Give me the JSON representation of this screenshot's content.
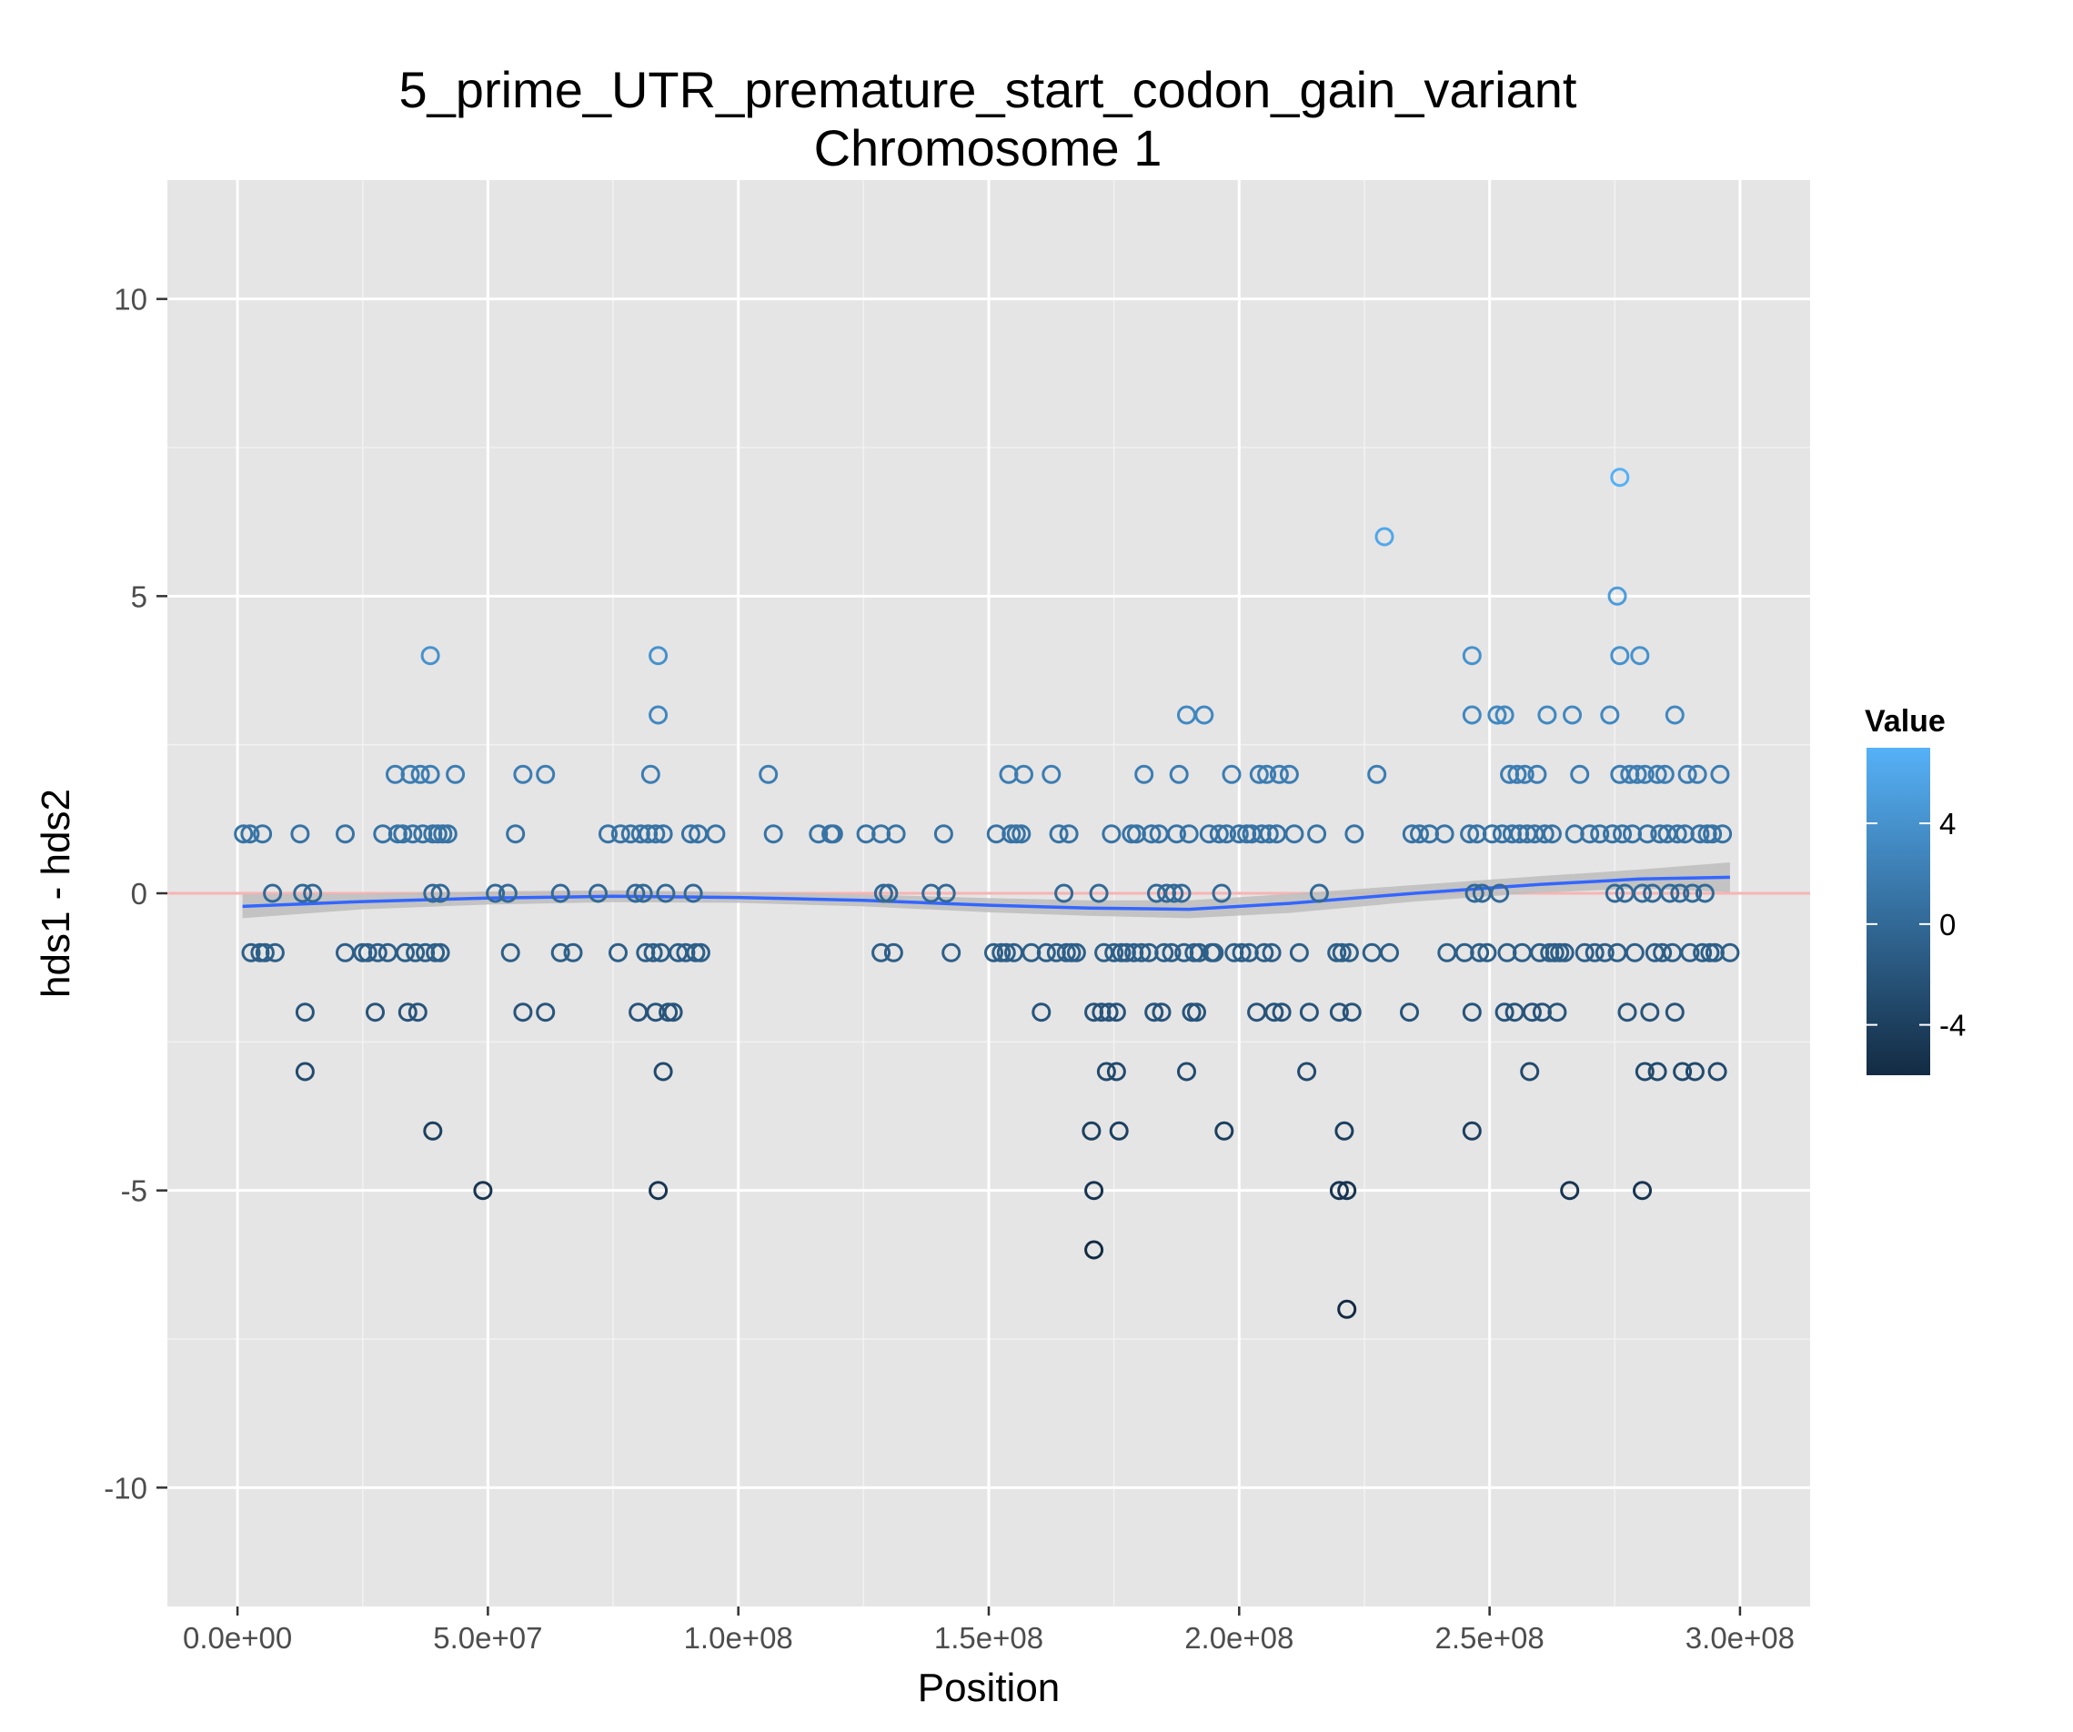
{
  "chart_data": {
    "type": "scatter",
    "title": "5_prime_UTR_premature_start_codon_gain_variant",
    "subtitle": "Chromosome 1",
    "xlabel": "Position",
    "ylabel": "hds1 - hds2",
    "xlim": [
      -14000000,
      314000000
    ],
    "ylim": [
      -12,
      12
    ],
    "x_ticks": [
      0,
      50000000,
      100000000,
      150000000,
      200000000,
      250000000,
      300000000
    ],
    "x_tick_labels": [
      "0.0e+00",
      "5.0e+07",
      "1.0e+08",
      "1.5e+08",
      "2.0e+08",
      "2.5e+08",
      "3.0e+08"
    ],
    "y_ticks": [
      -10,
      -5,
      0,
      5,
      10
    ],
    "y_tick_labels": [
      "-10",
      "-5",
      "0",
      "5",
      "10"
    ],
    "grid": true,
    "reference_line": {
      "y": 0,
      "color": "#f8b4b4"
    },
    "legend": {
      "title": "Value",
      "placement": "right",
      "range": [
        -6,
        7
      ],
      "ticks": [
        4,
        0,
        -4
      ],
      "tick_labels": [
        "4",
        "0",
        "-4"
      ],
      "color_low": "#132b43",
      "color_high": "#56b1f7"
    },
    "trend": {
      "color": "#3366ff",
      "band_color": "#bdbdbd",
      "x": [
        1000000,
        25000000,
        50000000,
        75000000,
        100000000,
        125000000,
        150000000,
        170000000,
        190000000,
        210000000,
        235000000,
        260000000,
        280000000,
        298000000
      ],
      "y": [
        -0.22,
        -0.14,
        -0.08,
        -0.05,
        -0.07,
        -0.12,
        -0.2,
        -0.25,
        -0.27,
        -0.17,
        0.0,
        0.15,
        0.24,
        0.27
      ],
      "lower": [
        -0.42,
        -0.27,
        -0.19,
        -0.15,
        -0.16,
        -0.22,
        -0.32,
        -0.38,
        -0.42,
        -0.33,
        -0.14,
        0.01,
        0.08,
        0.02
      ],
      "upper": [
        -0.02,
        -0.01,
        0.03,
        0.05,
        0.02,
        -0.02,
        -0.08,
        -0.12,
        -0.12,
        -0.01,
        0.14,
        0.29,
        0.4,
        0.52
      ]
    },
    "points": [
      [
        1200000,
        1
      ],
      [
        2500000,
        1
      ],
      [
        5000000,
        1
      ],
      [
        2700000,
        -1
      ],
      [
        4500000,
        -1
      ],
      [
        5500000,
        -1
      ],
      [
        7500000,
        -1
      ],
      [
        7000000,
        0
      ],
      [
        12500000,
        1
      ],
      [
        13000000,
        0
      ],
      [
        15000000,
        0
      ],
      [
        13500000,
        -2
      ],
      [
        13500000,
        -3
      ],
      [
        21500000,
        1
      ],
      [
        21500000,
        -1
      ],
      [
        25000000,
        -1
      ],
      [
        26000000,
        -1
      ],
      [
        27500000,
        -2
      ],
      [
        28000000,
        -1
      ],
      [
        29000000,
        1
      ],
      [
        30000000,
        -1
      ],
      [
        31500000,
        2
      ],
      [
        32000000,
        1
      ],
      [
        33000000,
        1
      ],
      [
        33500000,
        -1
      ],
      [
        34000000,
        -2
      ],
      [
        34500000,
        2
      ],
      [
        35000000,
        1
      ],
      [
        35500000,
        -1
      ],
      [
        36000000,
        -2
      ],
      [
        36500000,
        2
      ],
      [
        37000000,
        1
      ],
      [
        37500000,
        -1
      ],
      [
        38500000,
        4
      ],
      [
        38500000,
        2
      ],
      [
        39000000,
        1
      ],
      [
        39500000,
        -1
      ],
      [
        40000000,
        1
      ],
      [
        40500000,
        0
      ],
      [
        39000000,
        0
      ],
      [
        39000000,
        -4
      ],
      [
        40500000,
        -1
      ],
      [
        41000000,
        1
      ],
      [
        42000000,
        1
      ],
      [
        43500000,
        2
      ],
      [
        49000000,
        -5
      ],
      [
        51500000,
        0
      ],
      [
        54000000,
        0
      ],
      [
        54500000,
        -1
      ],
      [
        55500000,
        1
      ],
      [
        57000000,
        2
      ],
      [
        57000000,
        -2
      ],
      [
        61500000,
        2
      ],
      [
        61500000,
        -2
      ],
      [
        64500000,
        0
      ],
      [
        64500000,
        -1
      ],
      [
        67000000,
        -1
      ],
      [
        72000000,
        0
      ],
      [
        74000000,
        1
      ],
      [
        76000000,
        -1
      ],
      [
        76500000,
        1
      ],
      [
        78500000,
        1
      ],
      [
        79500000,
        0
      ],
      [
        80000000,
        -2
      ],
      [
        80500000,
        1
      ],
      [
        81000000,
        0
      ],
      [
        81500000,
        -1
      ],
      [
        82000000,
        1
      ],
      [
        82500000,
        2
      ],
      [
        83000000,
        -1
      ],
      [
        83500000,
        1
      ],
      [
        83500000,
        -2
      ],
      [
        84000000,
        4
      ],
      [
        84000000,
        3
      ],
      [
        84000000,
        -5
      ],
      [
        84500000,
        -1
      ],
      [
        85000000,
        1
      ],
      [
        85000000,
        -3
      ],
      [
        85500000,
        0
      ],
      [
        86000000,
        -2
      ],
      [
        87000000,
        -2
      ],
      [
        88000000,
        -1
      ],
      [
        89500000,
        -1
      ],
      [
        90500000,
        1
      ],
      [
        91000000,
        0
      ],
      [
        91500000,
        -1
      ],
      [
        92000000,
        1
      ],
      [
        92500000,
        -1
      ],
      [
        95500000,
        1
      ],
      [
        106000000,
        2
      ],
      [
        107000000,
        1
      ],
      [
        116000000,
        1
      ],
      [
        118500000,
        1
      ],
      [
        119000000,
        1
      ],
      [
        125500000,
        1
      ],
      [
        128500000,
        1
      ],
      [
        128500000,
        -1
      ],
      [
        129000000,
        0
      ],
      [
        130000000,
        0
      ],
      [
        131000000,
        -1
      ],
      [
        131500000,
        1
      ],
      [
        138500000,
        0
      ],
      [
        141000000,
        1
      ],
      [
        141500000,
        0
      ],
      [
        142500000,
        -1
      ],
      [
        151000000,
        -1
      ],
      [
        151500000,
        1
      ],
      [
        152500000,
        -1
      ],
      [
        153500000,
        -1
      ],
      [
        154000000,
        2
      ],
      [
        154500000,
        1
      ],
      [
        155000000,
        -1
      ],
      [
        155500000,
        1
      ],
      [
        156500000,
        1
      ],
      [
        157000000,
        2
      ],
      [
        158500000,
        -1
      ],
      [
        160500000,
        -2
      ],
      [
        161500000,
        -1
      ],
      [
        162500000,
        2
      ],
      [
        163500000,
        -1
      ],
      [
        164000000,
        1
      ],
      [
        165000000,
        0
      ],
      [
        165500000,
        -1
      ],
      [
        166000000,
        1
      ],
      [
        166500000,
        -1
      ],
      [
        167500000,
        -1
      ],
      [
        170500000,
        -4
      ],
      [
        171000000,
        -2
      ],
      [
        171000000,
        -5
      ],
      [
        171000000,
        -6
      ],
      [
        172000000,
        0
      ],
      [
        172500000,
        -2
      ],
      [
        173000000,
        -1
      ],
      [
        173500000,
        -3
      ],
      [
        174000000,
        -2
      ],
      [
        174500000,
        1
      ],
      [
        175000000,
        -1
      ],
      [
        175500000,
        -2
      ],
      [
        175500000,
        -3
      ],
      [
        176000000,
        -4
      ],
      [
        176500000,
        -1
      ],
      [
        177500000,
        -1
      ],
      [
        178500000,
        1
      ],
      [
        179000000,
        -1
      ],
      [
        179500000,
        1
      ],
      [
        180500000,
        -1
      ],
      [
        181000000,
        2
      ],
      [
        182000000,
        -1
      ],
      [
        182500000,
        1
      ],
      [
        183000000,
        -2
      ],
      [
        183500000,
        0
      ],
      [
        184000000,
        1
      ],
      [
        184500000,
        -2
      ],
      [
        185000000,
        -1
      ],
      [
        185500000,
        0
      ],
      [
        186500000,
        -1
      ],
      [
        187000000,
        0
      ],
      [
        187500000,
        1
      ],
      [
        188000000,
        2
      ],
      [
        188500000,
        0
      ],
      [
        189000000,
        -1
      ],
      [
        189500000,
        3
      ],
      [
        189500000,
        -3
      ],
      [
        190000000,
        1
      ],
      [
        190500000,
        -2
      ],
      [
        191000000,
        -1
      ],
      [
        191500000,
        -2
      ],
      [
        192000000,
        -1
      ],
      [
        193000000,
        3
      ],
      [
        194000000,
        1
      ],
      [
        194500000,
        -1
      ],
      [
        195000000,
        -1
      ],
      [
        196000000,
        1
      ],
      [
        196500000,
        0
      ],
      [
        197000000,
        -4
      ],
      [
        197500000,
        1
      ],
      [
        198500000,
        2
      ],
      [
        199000000,
        -1
      ],
      [
        200000000,
        1
      ],
      [
        200500000,
        -1
      ],
      [
        201500000,
        1
      ],
      [
        202000000,
        -1
      ],
      [
        202500000,
        1
      ],
      [
        203500000,
        -2
      ],
      [
        204000000,
        2
      ],
      [
        204500000,
        1
      ],
      [
        205000000,
        -1
      ],
      [
        205500000,
        2
      ],
      [
        206000000,
        1
      ],
      [
        206500000,
        -1
      ],
      [
        207000000,
        -2
      ],
      [
        207500000,
        1
      ],
      [
        208000000,
        2
      ],
      [
        208500000,
        -2
      ],
      [
        210000000,
        2
      ],
      [
        211000000,
        1
      ],
      [
        212000000,
        -1
      ],
      [
        213500000,
        -3
      ],
      [
        214000000,
        -2
      ],
      [
        215500000,
        1
      ],
      [
        216000000,
        0
      ],
      [
        219500000,
        -1
      ],
      [
        220000000,
        -2
      ],
      [
        220000000,
        -5
      ],
      [
        220500000,
        -1
      ],
      [
        221000000,
        -4
      ],
      [
        221500000,
        -5
      ],
      [
        221500000,
        -7
      ],
      [
        222000000,
        -1
      ],
      [
        222500000,
        -2
      ],
      [
        223000000,
        1
      ],
      [
        226500000,
        -1
      ],
      [
        227500000,
        2
      ],
      [
        229000000,
        6
      ],
      [
        230000000,
        -1
      ],
      [
        234000000,
        -2
      ],
      [
        234500000,
        1
      ],
      [
        236000000,
        1
      ],
      [
        238000000,
        1
      ],
      [
        241000000,
        1
      ],
      [
        241500000,
        -1
      ],
      [
        245000000,
        -1
      ],
      [
        246000000,
        1
      ],
      [
        246500000,
        4
      ],
      [
        246500000,
        3
      ],
      [
        246500000,
        -2
      ],
      [
        246500000,
        -4
      ],
      [
        247000000,
        0
      ],
      [
        247500000,
        1
      ],
      [
        248000000,
        -1
      ],
      [
        248500000,
        0
      ],
      [
        249500000,
        -1
      ],
      [
        250500000,
        1
      ],
      [
        251500000,
        3
      ],
      [
        252000000,
        0
      ],
      [
        252500000,
        1
      ],
      [
        253000000,
        -2
      ],
      [
        253000000,
        3
      ],
      [
        253500000,
        -1
      ],
      [
        254000000,
        2
      ],
      [
        254500000,
        1
      ],
      [
        255000000,
        -2
      ],
      [
        255500000,
        2
      ],
      [
        256000000,
        1
      ],
      [
        256500000,
        -1
      ],
      [
        257000000,
        2
      ],
      [
        257500000,
        1
      ],
      [
        258000000,
        -3
      ],
      [
        258500000,
        -2
      ],
      [
        259000000,
        1
      ],
      [
        259500000,
        2
      ],
      [
        260000000,
        -1
      ],
      [
        260500000,
        -2
      ],
      [
        261000000,
        1
      ],
      [
        261500000,
        3
      ],
      [
        262000000,
        -1
      ],
      [
        262500000,
        1
      ],
      [
        263000000,
        -1
      ],
      [
        263500000,
        -2
      ],
      [
        264000000,
        -1
      ],
      [
        265000000,
        -1
      ],
      [
        266000000,
        -5
      ],
      [
        266500000,
        3
      ],
      [
        267000000,
        1
      ],
      [
        268000000,
        2
      ],
      [
        269000000,
        -1
      ],
      [
        270000000,
        1
      ],
      [
        271000000,
        -1
      ],
      [
        272000000,
        1
      ],
      [
        273000000,
        -1
      ],
      [
        274000000,
        3
      ],
      [
        274500000,
        1
      ],
      [
        275000000,
        0
      ],
      [
        275500000,
        5
      ],
      [
        275500000,
        -1
      ],
      [
        276000000,
        7
      ],
      [
        276000000,
        4
      ],
      [
        276000000,
        2
      ],
      [
        276500000,
        1
      ],
      [
        277000000,
        0
      ],
      [
        277500000,
        -2
      ],
      [
        278000000,
        2
      ],
      [
        278500000,
        1
      ],
      [
        279000000,
        -1
      ],
      [
        279500000,
        2
      ],
      [
        280000000,
        4
      ],
      [
        280500000,
        0
      ],
      [
        280500000,
        -5
      ],
      [
        281000000,
        2
      ],
      [
        281000000,
        -3
      ],
      [
        281500000,
        1
      ],
      [
        282000000,
        -2
      ],
      [
        282500000,
        0
      ],
      [
        283000000,
        -1
      ],
      [
        283500000,
        2
      ],
      [
        283500000,
        -3
      ],
      [
        284000000,
        1
      ],
      [
        284500000,
        -1
      ],
      [
        285000000,
        2
      ],
      [
        285500000,
        1
      ],
      [
        286000000,
        0
      ],
      [
        286500000,
        -1
      ],
      [
        287000000,
        3
      ],
      [
        287000000,
        -2
      ],
      [
        287500000,
        1
      ],
      [
        288000000,
        0
      ],
      [
        288500000,
        -3
      ],
      [
        289000000,
        1
      ],
      [
        289500000,
        2
      ],
      [
        290000000,
        -1
      ],
      [
        290500000,
        0
      ],
      [
        291000000,
        -3
      ],
      [
        291500000,
        2
      ],
      [
        292000000,
        1
      ],
      [
        292500000,
        -1
      ],
      [
        293000000,
        0
      ],
      [
        293500000,
        1
      ],
      [
        294000000,
        -1
      ],
      [
        294500000,
        1
      ],
      [
        295000000,
        -1
      ],
      [
        295500000,
        -3
      ],
      [
        296000000,
        2
      ],
      [
        296500000,
        1
      ],
      [
        298000000,
        -1
      ]
    ]
  }
}
